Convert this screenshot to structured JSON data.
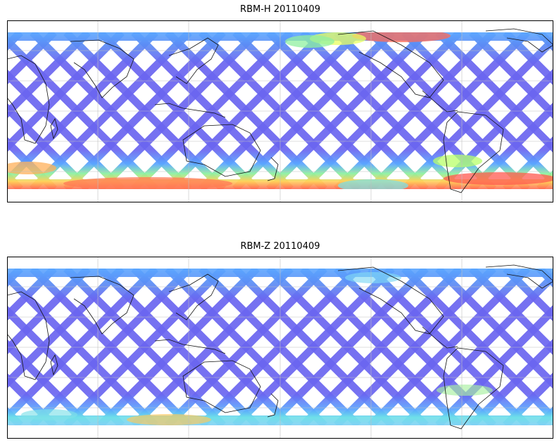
{
  "panels": [
    {
      "title": "RBM-H 20110409",
      "colormap": "jet",
      "coverage": "satellite swath grid, high values near poles on Pacific/Atlantic edges",
      "colors": {
        "low": "#6b66f0",
        "mid": "#59a8f5",
        "high": "#ff6a55"
      }
    },
    {
      "title": "RBM-Z 20110409",
      "colormap": "jet",
      "coverage": "satellite swath grid, mostly low values",
      "colors": {
        "low": "#6b66f0",
        "mid": "#59a8f5",
        "high": "#ffd25a"
      }
    }
  ],
  "map": {
    "projection": "Plate Carree",
    "central_longitude": 150,
    "gridlines": true,
    "coastlines": true
  }
}
